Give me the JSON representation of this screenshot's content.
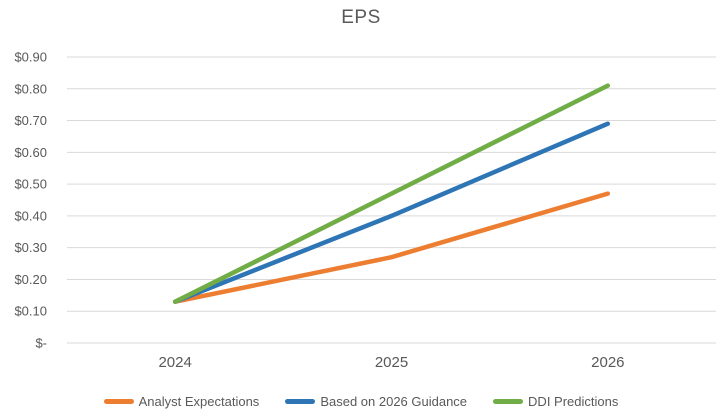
{
  "chart_data": {
    "type": "line",
    "title": "EPS",
    "xlabel": "",
    "ylabel": "",
    "categories": [
      "2024",
      "2025",
      "2026"
    ],
    "series": [
      {
        "name": "Analyst Expectations",
        "color": "#ED7D31",
        "values": [
          0.13,
          0.27,
          0.47
        ]
      },
      {
        "name": "Based on 2026 Guidance",
        "color": "#2E75B6",
        "values": [
          0.13,
          0.4,
          0.69
        ]
      },
      {
        "name": "DDI Predictions",
        "color": "#70AD47",
        "values": [
          0.13,
          0.47,
          0.81
        ]
      }
    ],
    "ylim": [
      0,
      0.9
    ],
    "yticks": [
      {
        "value": 0.9,
        "label": "$0.90"
      },
      {
        "value": 0.8,
        "label": "$0.80"
      },
      {
        "value": 0.7,
        "label": "$0.70"
      },
      {
        "value": 0.6,
        "label": "$0.60"
      },
      {
        "value": 0.5,
        "label": "$0.50"
      },
      {
        "value": 0.4,
        "label": "$0.40"
      },
      {
        "value": 0.3,
        "label": "$0.30"
      },
      {
        "value": 0.2,
        "label": "$0.20"
      },
      {
        "value": 0.1,
        "label": "$0.10"
      },
      {
        "value": 0.0,
        "label": "$-"
      }
    ],
    "grid": true,
    "legend_position": "bottom",
    "text_color": "#595959",
    "gridline_color": "#D9D9D9"
  }
}
